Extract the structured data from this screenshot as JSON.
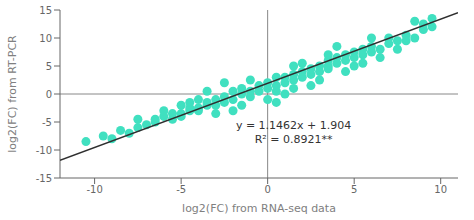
{
  "chart_data": {
    "type": "scatter",
    "xlabel": "log2(FC) from RNA-seq data",
    "ylabel": "log2(FC) from RT-PCR",
    "xlim": [
      -12,
      11
    ],
    "ylim": [
      -15,
      15
    ],
    "xticks": [
      -10,
      -5,
      0,
      5,
      10
    ],
    "yticks": [
      -15,
      -10,
      -5,
      0,
      5,
      10,
      15
    ],
    "annotations": [
      "y = 1.1462x + 1.904",
      "R² = 0.8921**"
    ],
    "series": [
      {
        "type": "scatter",
        "color": "#40E0C0",
        "x": [
          -10.5,
          -9.5,
          -9.0,
          -8.5,
          -8.0,
          -7.5,
          -7.0,
          -6.5,
          -6.5,
          -6.0,
          -5.5,
          -5.5,
          -5.0,
          -5.0,
          -4.5,
          -4.5,
          -4.0,
          -4.0,
          -3.5,
          -3.5,
          -3.0,
          -3.0,
          -2.5,
          -2.5,
          -2.0,
          -2.0,
          -1.5,
          -1.5,
          -1.0,
          -1.0,
          -0.5,
          -0.5,
          0.0,
          0.0,
          0.5,
          0.5,
          1.0,
          1.0,
          1.5,
          1.5,
          2.0,
          2.0,
          2.5,
          2.5,
          3.0,
          3.0,
          3.5,
          3.5,
          4.0,
          4.0,
          4.5,
          4.5,
          5.0,
          5.0,
          5.5,
          5.5,
          6.0,
          6.0,
          6.5,
          7.0,
          7.0,
          7.5,
          8.0,
          8.5,
          8.5,
          9.0,
          9.0,
          9.5,
          9.5,
          -3.5,
          -2.5,
          -1.5,
          1.5,
          2.5,
          -4.0,
          0.0,
          1.0,
          3.0,
          4.5,
          5.5,
          6.5,
          -6.0,
          -5.0,
          0.5,
          2.0,
          3.5,
          -1.0,
          0.5,
          7.5,
          8.0,
          -7.5,
          -4.5,
          6.0,
          4.0,
          -3.0,
          1.5,
          -2.0,
          3.5,
          5.0
        ],
        "values": [
          -8.5,
          -7.5,
          -8.0,
          -6.5,
          -7.0,
          -6.0,
          -5.5,
          -5.0,
          -4.5,
          -4.0,
          -4.5,
          -3.5,
          -3.5,
          -4.0,
          -3.0,
          -2.5,
          -2.5,
          -3.0,
          -2.0,
          -1.5,
          -2.0,
          -1.0,
          -1.5,
          -0.5,
          -1.0,
          0.5,
          0.0,
          1.0,
          0.5,
          -0.5,
          0.5,
          1.5,
          1.0,
          2.0,
          1.5,
          0.5,
          2.0,
          3.0,
          2.5,
          3.5,
          3.0,
          4.0,
          3.5,
          4.5,
          4.0,
          5.0,
          5.0,
          6.0,
          5.5,
          6.5,
          6.0,
          7.0,
          6.5,
          7.5,
          7.0,
          8.0,
          7.5,
          8.5,
          8.0,
          9.0,
          10.0,
          9.5,
          10.5,
          10.0,
          13.0,
          12.5,
          11.5,
          12.0,
          13.5,
          0.5,
          2.0,
          -2.0,
          1.0,
          1.5,
          -1.0,
          -1.0,
          0.0,
          2.5,
          4.0,
          5.5,
          6.5,
          -3.0,
          -2.0,
          3.0,
          5.5,
          4.5,
          2.5,
          -1.5,
          8.0,
          9.5,
          -4.5,
          -1.5,
          10.0,
          8.5,
          -3.5,
          5.0,
          -3.0,
          7.0,
          5.0
        ]
      },
      {
        "type": "line",
        "color": "#2F2F2F",
        "x": [
          -12,
          11
        ],
        "values": [
          -11.8504,
          14.5122
        ]
      }
    ]
  }
}
